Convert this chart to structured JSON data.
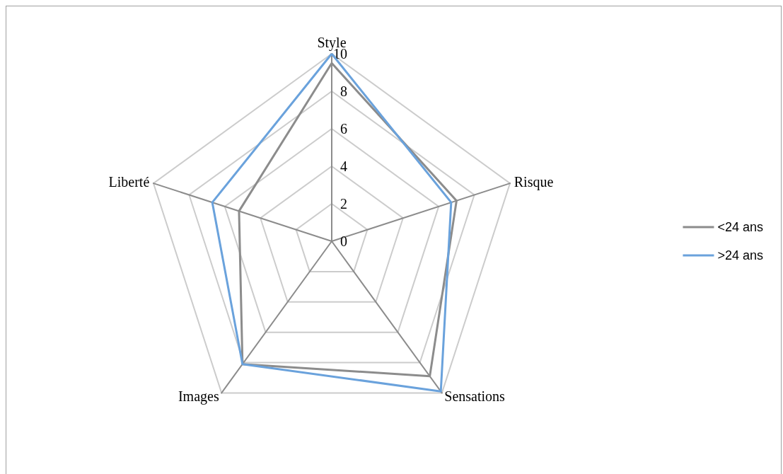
{
  "chart_data": {
    "type": "radar",
    "categories": [
      "Style",
      "Risque",
      "Sensations",
      "Images",
      "Liberté"
    ],
    "series": [
      {
        "name": "<24 ans",
        "color": "#8c8c8c",
        "values": [
          9.5,
          7.0,
          8.9,
          8.1,
          5.2
        ]
      },
      {
        "name": ">24 ans",
        "color": "#6aa2dc",
        "values": [
          10,
          6.7,
          9.9,
          8.1,
          6.7
        ]
      }
    ],
    "ylim": [
      0,
      10
    ],
    "yticks": [
      0,
      2,
      4,
      6,
      8,
      10
    ],
    "grid": true,
    "legend": "right",
    "marker": "none",
    "line_style": "solid"
  }
}
